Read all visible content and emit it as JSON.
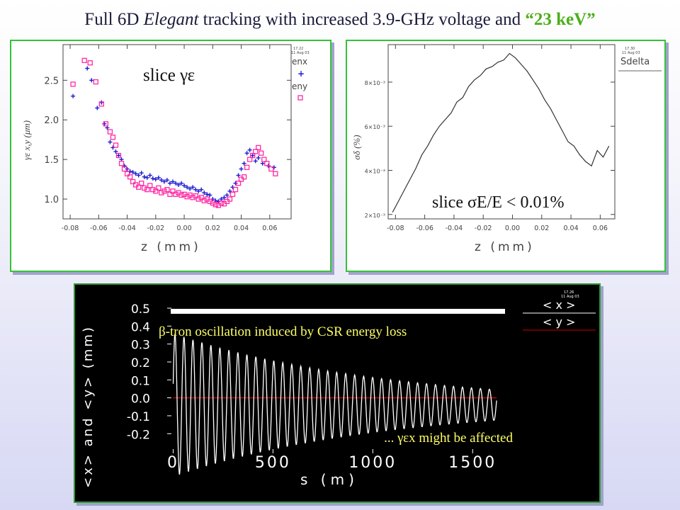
{
  "title": {
    "part1": "Full 6D ",
    "italic": "Elegant",
    "part2": " tracking with increased 3.9-GHz voltage and ",
    "keyword": "“23 keV”"
  },
  "colors": {
    "title_keyword": "#4caf1a",
    "panel_border": "#35c23a",
    "enx": "#1c1ccf",
    "eny": "#ff2aa3",
    "annotation_yellow": "#ffff66",
    "zero_line": "#cc0000"
  },
  "chart_data": [
    {
      "type": "scatter",
      "overlay_text": "slice γε",
      "stamp": [
        "17.22",
        "11 Aug 03"
      ],
      "xlabel": "z (mm)",
      "ylabel": "γε x,y (μm)",
      "xlim": [
        -0.085,
        0.075
      ],
      "ylim": [
        0.75,
        2.95
      ],
      "xticks": [
        "-0.08",
        "-0.06",
        "-0.04",
        "-0.02",
        "0.00",
        "0.02",
        "0.04",
        "0.06"
      ],
      "yticks": [
        "1.0",
        "1.5",
        "2.0",
        "2.5"
      ],
      "legend_position": "top-right outside",
      "series": [
        {
          "name": "enx",
          "marker": "plus",
          "color": "#1c1ccf",
          "x": [
            -0.078,
            -0.068,
            -0.065,
            -0.061,
            -0.058,
            -0.056,
            -0.054,
            -0.052,
            -0.05,
            -0.048,
            -0.046,
            -0.044,
            -0.042,
            -0.04,
            -0.038,
            -0.036,
            -0.034,
            -0.032,
            -0.03,
            -0.028,
            -0.026,
            -0.024,
            -0.022,
            -0.02,
            -0.018,
            -0.016,
            -0.014,
            -0.012,
            -0.01,
            -0.008,
            -0.006,
            -0.004,
            -0.002,
            0.0,
            0.002,
            0.004,
            0.006,
            0.008,
            0.01,
            0.012,
            0.014,
            0.016,
            0.018,
            0.02,
            0.022,
            0.024,
            0.026,
            0.028,
            0.03,
            0.032,
            0.034,
            0.036,
            0.038,
            0.04,
            0.042,
            0.044,
            0.046,
            0.048,
            0.05,
            0.052,
            0.055,
            0.059,
            0.063
          ],
          "y": [
            2.3,
            2.65,
            2.5,
            2.15,
            2.22,
            1.95,
            1.9,
            1.72,
            1.65,
            1.6,
            1.55,
            1.5,
            1.42,
            1.38,
            1.35,
            1.34,
            1.32,
            1.3,
            1.33,
            1.28,
            1.27,
            1.3,
            1.26,
            1.25,
            1.27,
            1.24,
            1.22,
            1.24,
            1.2,
            1.22,
            1.2,
            1.18,
            1.2,
            1.17,
            1.15,
            1.13,
            1.15,
            1.12,
            1.1,
            1.12,
            1.08,
            1.06,
            1.05,
            1.0,
            0.98,
            0.97,
            1.0,
            1.02,
            1.05,
            1.1,
            1.15,
            1.2,
            1.3,
            1.38,
            1.45,
            1.58,
            1.62,
            1.55,
            1.48,
            1.52,
            1.45,
            1.42,
            1.4
          ]
        },
        {
          "name": "eny",
          "marker": "square",
          "color": "#ff2aa3",
          "x": [
            -0.078,
            -0.07,
            -0.066,
            -0.062,
            -0.058,
            -0.055,
            -0.052,
            -0.05,
            -0.048,
            -0.046,
            -0.044,
            -0.042,
            -0.04,
            -0.038,
            -0.036,
            -0.034,
            -0.032,
            -0.03,
            -0.028,
            -0.026,
            -0.024,
            -0.022,
            -0.02,
            -0.018,
            -0.016,
            -0.014,
            -0.012,
            -0.01,
            -0.008,
            -0.006,
            -0.004,
            -0.002,
            0.0,
            0.002,
            0.004,
            0.006,
            0.008,
            0.01,
            0.012,
            0.014,
            0.016,
            0.018,
            0.02,
            0.022,
            0.024,
            0.026,
            0.028,
            0.03,
            0.032,
            0.034,
            0.036,
            0.038,
            0.04,
            0.042,
            0.044,
            0.046,
            0.048,
            0.05,
            0.052,
            0.054,
            0.056,
            0.058,
            0.061,
            0.064
          ],
          "y": [
            2.45,
            2.75,
            2.72,
            2.48,
            2.2,
            1.95,
            1.85,
            1.78,
            1.68,
            1.55,
            1.45,
            1.38,
            1.32,
            1.28,
            1.22,
            1.18,
            1.15,
            1.2,
            1.14,
            1.12,
            1.17,
            1.12,
            1.1,
            1.14,
            1.08,
            1.1,
            1.12,
            1.06,
            1.1,
            1.06,
            1.08,
            1.05,
            1.06,
            1.03,
            1.05,
            1.02,
            1.04,
            1.0,
            1.02,
            0.98,
            1.0,
            0.97,
            0.95,
            0.93,
            0.92,
            0.95,
            0.94,
            0.97,
            1.0,
            1.06,
            1.12,
            1.2,
            1.25,
            1.28,
            1.4,
            1.5,
            1.55,
            1.6,
            1.65,
            1.58,
            1.5,
            1.45,
            1.38,
            1.32
          ]
        }
      ]
    },
    {
      "type": "line",
      "overlay_text": "slice σE/E < 0.01%",
      "stamp": [
        "17.30",
        "11 Aug 03"
      ],
      "legend": [
        "Sdelta"
      ],
      "legend_position": "top-right outside",
      "xlabel": "z (mm)",
      "ylabel": "σδ (%)",
      "xlim": [
        -0.085,
        0.07
      ],
      "ylim": [
        0.0018,
        0.0097
      ],
      "xticks": [
        "-0.08",
        "-0.06",
        "-0.04",
        "-0.02",
        "0.00",
        "0.02",
        "0.04",
        "0.06"
      ],
      "yticks": [
        "2×10⁻³",
        "4×10⁻³",
        "6×10⁻³",
        "8×10⁻³"
      ],
      "series": [
        {
          "name": "Sdelta",
          "color": "#333333",
          "x": [
            -0.082,
            -0.078,
            -0.074,
            -0.07,
            -0.066,
            -0.062,
            -0.058,
            -0.054,
            -0.05,
            -0.046,
            -0.042,
            -0.038,
            -0.034,
            -0.03,
            -0.026,
            -0.022,
            -0.018,
            -0.014,
            -0.01,
            -0.006,
            -0.002,
            0.002,
            0.006,
            0.01,
            0.014,
            0.018,
            0.022,
            0.026,
            0.03,
            0.034,
            0.038,
            0.042,
            0.046,
            0.05,
            0.054,
            0.058,
            0.062,
            0.066
          ],
          "y": [
            0.0021,
            0.0026,
            0.0031,
            0.0036,
            0.0041,
            0.0047,
            0.0051,
            0.0056,
            0.006,
            0.0063,
            0.0066,
            0.0071,
            0.0073,
            0.0078,
            0.0081,
            0.0083,
            0.0086,
            0.0087,
            0.0089,
            0.009,
            0.0093,
            0.0091,
            0.0088,
            0.0085,
            0.0081,
            0.0077,
            0.0072,
            0.0068,
            0.0063,
            0.0058,
            0.0053,
            0.0051,
            0.0047,
            0.0044,
            0.0042,
            0.0049,
            0.0046,
            0.0051
          ]
        }
      ]
    },
    {
      "type": "line",
      "stamp": [
        "17.26",
        "11 Aug 03"
      ],
      "legend": [
        "< x >",
        "< y >"
      ],
      "legend_position": "top-right outside",
      "xlabel": "s (m)",
      "ylabel": "<x> and <y> (mm)",
      "xlim": [
        -30,
        1680
      ],
      "ylim": [
        -0.27,
        0.52
      ],
      "xticks": [
        "0",
        "500",
        "1000",
        "1500"
      ],
      "yticks": [
        "-0.2",
        "-0.1",
        "0.0",
        "0.1",
        "0.2",
        "0.3",
        "0.4",
        "0.5"
      ],
      "annotations": [
        "β-tron oscillation induced by CSR energy loss",
        "... γεx might be affected"
      ],
      "series": [
        {
          "name": "< x >",
          "color": "#ffffff",
          "model": "damped oscillation",
          "amplitude_start": 0.4,
          "amplitude_end": 0.085,
          "offset": -0.04,
          "period": 45,
          "s_range": [
            0,
            1620
          ]
        },
        {
          "name": "< y >",
          "color": "#cc0000",
          "model": "flat",
          "value": 0.0,
          "s_range": [
            0,
            1620
          ]
        }
      ]
    }
  ]
}
